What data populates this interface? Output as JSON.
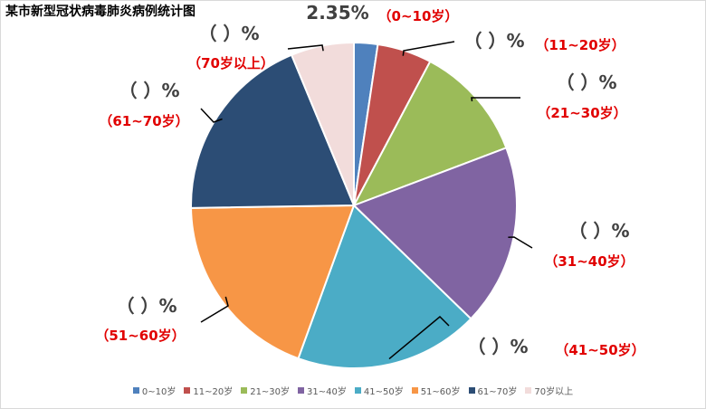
{
  "chart_data": {
    "type": "pie",
    "title": "某市新型冠状病毒肺炎病例统计图",
    "categories": [
      "0~10岁",
      "11~20岁",
      "21~30岁",
      "31~40岁",
      "41~50岁",
      "51~60岁",
      "61~70岁",
      "70岁以上"
    ],
    "values": [
      2.35,
      5.4,
      11.5,
      18.0,
      18.3,
      19.2,
      19.0,
      6.25
    ],
    "value_labels": [
      "2.35%",
      "（    ）%",
      "（    ）%",
      "（    ）%",
      "（    ）%",
      "（    ）%",
      "（    ）%",
      "（    ）%"
    ],
    "category_labels": [
      "（0~10岁）",
      "（11~20岁）",
      "（21~30岁）",
      "（31~40岁）",
      "（41~50岁）",
      "（51~60岁）",
      "（61~70岁）",
      "（70岁以上）"
    ],
    "colors": [
      "#4f81bd",
      "#c0504d",
      "#9bbb59",
      "#8064a2",
      "#4bacc6",
      "#f79646",
      "#2c4d75",
      "#f2dcdb"
    ],
    "legend_position": "bottom"
  }
}
